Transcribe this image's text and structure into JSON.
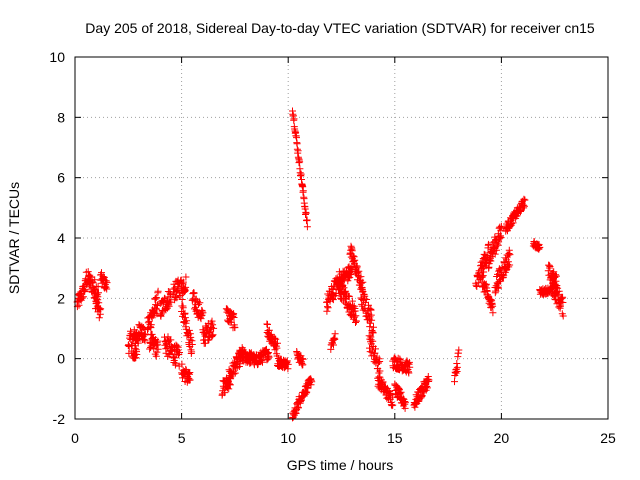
{
  "chart_data": {
    "type": "scatter",
    "title": "Day 205 of 2018, Sidereal Day-to-day VTEC variation (SDTVAR) for receiver cn15",
    "xlabel": "GPS time / hours",
    "ylabel": "SDTVAR / TECUs",
    "xlim": [
      0,
      25
    ],
    "ylim": [
      -2,
      10
    ],
    "xticks": [
      0,
      5,
      10,
      15,
      20,
      25
    ],
    "yticks": [
      -2,
      0,
      2,
      4,
      6,
      8,
      10
    ],
    "grid": true,
    "marker": "plus",
    "colors": {
      "series": "#ff0000",
      "grid": "#a0a0a0",
      "axis": "#000000"
    },
    "series": [
      {
        "name": "cn15",
        "segments": [
          {
            "x0": 0.1,
            "x1": 0.5,
            "y0": 1.8,
            "y1": 2.4,
            "jitter": 0.25
          },
          {
            "x0": 0.5,
            "x1": 1.1,
            "y0": 2.7,
            "y1": 2.2,
            "jitter": 0.3
          },
          {
            "x0": 0.9,
            "x1": 1.2,
            "y0": 2.0,
            "y1": 1.5,
            "jitter": 0.25
          },
          {
            "x0": 1.2,
            "x1": 1.5,
            "y0": 2.7,
            "y1": 2.4,
            "jitter": 0.2
          },
          {
            "x0": 2.5,
            "x1": 3.0,
            "y0": 0.5,
            "y1": 0.8,
            "jitter": 0.35
          },
          {
            "x0": 2.7,
            "x1": 2.9,
            "y0": 0.0,
            "y1": 0.3,
            "jitter": 0.2
          },
          {
            "x0": 3.0,
            "x1": 3.3,
            "y0": 1.0,
            "y1": 0.7,
            "jitter": 0.25
          },
          {
            "x0": 3.4,
            "x1": 3.9,
            "y0": 1.1,
            "y1": 1.9,
            "jitter": 0.35
          },
          {
            "x0": 3.5,
            "x1": 3.9,
            "y0": 0.6,
            "y1": 0.3,
            "jitter": 0.3
          },
          {
            "x0": 4.0,
            "x1": 4.5,
            "y0": 1.6,
            "y1": 2.1,
            "jitter": 0.3
          },
          {
            "x0": 4.2,
            "x1": 4.9,
            "y0": 0.5,
            "y1": 0.0,
            "jitter": 0.35
          },
          {
            "x0": 4.6,
            "x1": 5.2,
            "y0": 2.2,
            "y1": 2.5,
            "jitter": 0.3
          },
          {
            "x0": 5.0,
            "x1": 5.5,
            "y0": 1.8,
            "y1": 0.3,
            "jitter": 0.3
          },
          {
            "x0": 5.0,
            "x1": 5.4,
            "y0": -0.4,
            "y1": -0.7,
            "jitter": 0.25
          },
          {
            "x0": 5.5,
            "x1": 6.0,
            "y0": 2.0,
            "y1": 1.4,
            "jitter": 0.3
          },
          {
            "x0": 6.0,
            "x1": 6.5,
            "y0": 0.7,
            "y1": 1.1,
            "jitter": 0.3
          },
          {
            "x0": 6.9,
            "x1": 7.3,
            "y0": -1.0,
            "y1": -0.7,
            "jitter": 0.25
          },
          {
            "x0": 7.1,
            "x1": 7.5,
            "y0": 1.5,
            "y1": 1.2,
            "jitter": 0.25
          },
          {
            "x0": 7.2,
            "x1": 7.9,
            "y0": -0.6,
            "y1": 0.2,
            "jitter": 0.25
          },
          {
            "x0": 7.7,
            "x1": 8.4,
            "y0": 0.1,
            "y1": 0.0,
            "jitter": 0.2
          },
          {
            "x0": 8.4,
            "x1": 9.1,
            "y0": -0.1,
            "y1": 0.2,
            "jitter": 0.2
          },
          {
            "x0": 9.0,
            "x1": 9.5,
            "y0": 1.0,
            "y1": 0.3,
            "jitter": 0.25
          },
          {
            "x0": 9.5,
            "x1": 10.0,
            "y0": -0.1,
            "y1": -0.2,
            "jitter": 0.15
          },
          {
            "x0": 10.2,
            "x1": 10.9,
            "y0": 8.3,
            "y1": 4.4,
            "jitter": 0.12
          },
          {
            "x0": 10.2,
            "x1": 10.5,
            "y0": -1.9,
            "y1": -1.5,
            "jitter": 0.15
          },
          {
            "x0": 10.4,
            "x1": 10.7,
            "y0": 0.1,
            "y1": -0.1,
            "jitter": 0.15
          },
          {
            "x0": 10.5,
            "x1": 11.1,
            "y0": -1.4,
            "y1": -0.7,
            "jitter": 0.15
          },
          {
            "x0": 11.8,
            "x1": 12.4,
            "y0": 1.8,
            "y1": 2.6,
            "jitter": 0.3
          },
          {
            "x0": 12.0,
            "x1": 12.2,
            "y0": 0.4,
            "y1": 0.7,
            "jitter": 0.15
          },
          {
            "x0": 12.4,
            "x1": 13.0,
            "y0": 2.6,
            "y1": 2.9,
            "jitter": 0.25
          },
          {
            "x0": 12.3,
            "x1": 13.2,
            "y0": 2.5,
            "y1": 1.4,
            "jitter": 0.3
          },
          {
            "x0": 12.9,
            "x1": 13.5,
            "y0": 3.6,
            "y1": 2.3,
            "jitter": 0.25
          },
          {
            "x0": 13.4,
            "x1": 14.0,
            "y0": 2.1,
            "y1": 1.1,
            "jitter": 0.35
          },
          {
            "x0": 13.8,
            "x1": 14.3,
            "y0": 0.6,
            "y1": -0.3,
            "jitter": 0.3
          },
          {
            "x0": 14.2,
            "x1": 14.9,
            "y0": -0.7,
            "y1": -1.4,
            "jitter": 0.2
          },
          {
            "x0": 14.9,
            "x1": 15.7,
            "y0": -0.1,
            "y1": -0.3,
            "jitter": 0.2
          },
          {
            "x0": 15.0,
            "x1": 15.5,
            "y0": -1.0,
            "y1": -1.5,
            "jitter": 0.2
          },
          {
            "x0": 15.9,
            "x1": 16.6,
            "y0": -1.5,
            "y1": -0.7,
            "jitter": 0.2
          },
          {
            "x0": 17.8,
            "x1": 18.0,
            "y0": -0.8,
            "y1": 0.2,
            "jitter": 0.25
          },
          {
            "x0": 18.8,
            "x1": 19.4,
            "y0": 2.4,
            "y1": 3.6,
            "jitter": 0.3
          },
          {
            "x0": 19.1,
            "x1": 19.6,
            "y0": 2.6,
            "y1": 1.6,
            "jitter": 0.25
          },
          {
            "x0": 19.4,
            "x1": 20.0,
            "y0": 3.3,
            "y1": 4.2,
            "jitter": 0.3
          },
          {
            "x0": 19.7,
            "x1": 20.4,
            "y0": 2.4,
            "y1": 3.4,
            "jitter": 0.3
          },
          {
            "x0": 20.2,
            "x1": 21.1,
            "y0": 4.3,
            "y1": 5.2,
            "jitter": 0.15
          },
          {
            "x0": 21.5,
            "x1": 21.8,
            "y0": 3.8,
            "y1": 3.7,
            "jitter": 0.1
          },
          {
            "x0": 21.8,
            "x1": 22.4,
            "y0": 2.2,
            "y1": 2.3,
            "jitter": 0.1
          },
          {
            "x0": 22.2,
            "x1": 22.6,
            "y0": 2.9,
            "y1": 2.5,
            "jitter": 0.25
          },
          {
            "x0": 22.4,
            "x1": 22.9,
            "y0": 2.4,
            "y1": 1.7,
            "jitter": 0.3
          }
        ]
      }
    ]
  }
}
